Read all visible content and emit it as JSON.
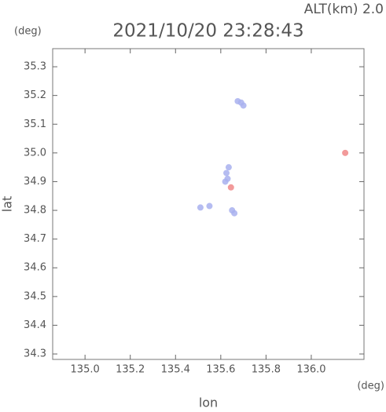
{
  "chart_data": {
    "type": "scatter",
    "title": "2021/10/20 23:28:43",
    "altitude_label": "ALT(km) 2.0",
    "y_unit": "(deg)",
    "x_unit": "(deg)",
    "xlabel": "lon",
    "ylabel": "lat",
    "xlim": [
      134.857,
      136.233
    ],
    "ylim": [
      34.281,
      35.363
    ],
    "xticks": [
      {
        "value": 135,
        "label": "135.0"
      },
      135.2,
      135.4,
      135.6,
      135.8,
      {
        "value": 136,
        "label": "136.0"
      }
    ],
    "yticks": [
      35.3,
      35.2,
      35.1,
      {
        "value": 35,
        "label": "35.0"
      },
      34.9,
      34.8,
      34.7,
      34.6,
      34.5,
      34.4,
      34.3
    ],
    "series": [
      {
        "color": "#a8b0ee",
        "x": [
          135.675,
          135.69,
          135.7,
          135.625,
          135.635,
          135.62,
          135.63,
          135.51,
          135.55,
          135.65,
          135.66
        ],
        "values": [
          35.18,
          35.175,
          35.165,
          34.93,
          34.95,
          34.9,
          34.91,
          34.81,
          34.815,
          34.8,
          34.79
        ]
      },
      {
        "color": "#f08888",
        "x": [
          135.645,
          136.15
        ],
        "values": [
          34.88,
          35.0
        ]
      }
    ]
  }
}
